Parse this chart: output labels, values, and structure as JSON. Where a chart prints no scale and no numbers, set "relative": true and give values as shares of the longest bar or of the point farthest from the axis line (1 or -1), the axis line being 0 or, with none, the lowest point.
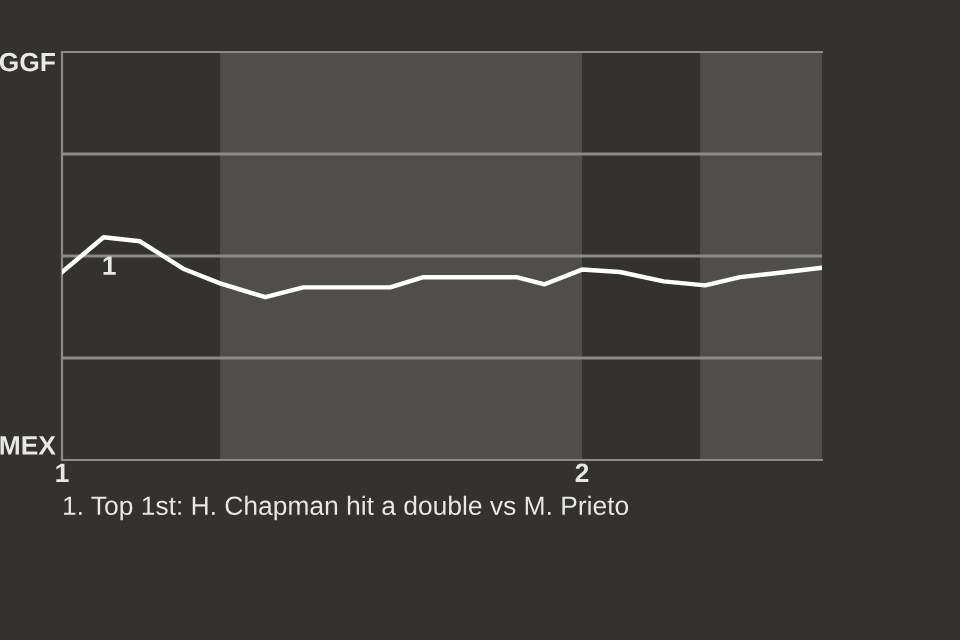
{
  "chart_data": {
    "type": "line",
    "relative": true,
    "x": [
      1.0,
      1.08,
      1.15,
      1.233,
      1.304,
      1.391,
      1.464,
      1.631,
      1.695,
      1.874,
      1.928,
      2.0,
      2.073,
      2.157,
      2.237,
      2.304,
      2.393,
      2.4615
    ],
    "series": [
      {
        "color": "#ffffff",
        "values": [
          0.844,
          1,
          0.982,
          0.859,
          0.793,
          0.731,
          0.775,
          0.775,
          0.821,
          0.821,
          0.789,
          0.855,
          0.844,
          0.802,
          0.784,
          0.821,
          0.844,
          0.863
        ]
      }
    ],
    "xlim": [
      1.0,
      2.4615
    ],
    "xticks": [
      1,
      2
    ],
    "bands": [
      {
        "axis": "x",
        "from": 1.304,
        "to": 2.0,
        "color": "#4f4e4c"
      },
      {
        "axis": "x",
        "from": 2.227,
        "to": 2.4615,
        "color": "#4f4e4c"
      }
    ],
    "ref_lines": [
      {
        "axis": "y",
        "value": 0.458,
        "color": "#8a8a8a"
      },
      {
        "axis": "y",
        "value": 0.916,
        "color": "#8a8a8a"
      },
      {
        "axis": "y",
        "value": 1.374,
        "color": "#8a8a8a"
      }
    ],
    "marker": "none",
    "line_style": "solid",
    "annotations": [
      "GGF",
      "MEX",
      {
        "text": "1",
        "x": 1.08,
        "y": 1
      },
      "1. Top 1st: H. Chapman hit a double vs M. Prieto"
    ]
  }
}
